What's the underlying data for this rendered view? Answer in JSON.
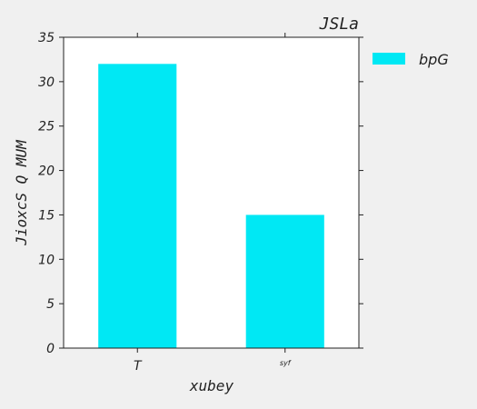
{
  "chart_data": {
    "type": "bar",
    "title": "JSLa",
    "xlabel": "xubey",
    "ylabel": "JioxcS Q MUM",
    "categories": [
      "T",
      "syf"
    ],
    "series": [
      {
        "name": "bpG",
        "values": [
          32,
          15
        ],
        "color": "#00e8f4"
      }
    ],
    "ylim": [
      0,
      35
    ],
    "yticks": [
      0,
      5,
      10,
      15,
      20,
      25,
      30,
      35
    ],
    "grid": false,
    "legend_position": "right"
  }
}
